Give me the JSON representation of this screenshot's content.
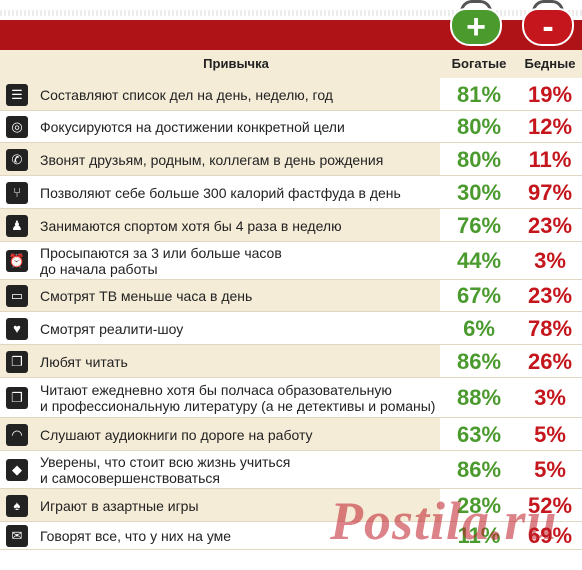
{
  "header": {
    "habit": "Привычка",
    "rich": "Богатые",
    "poor": "Бедные"
  },
  "wallets": {
    "rich_symbol": "+",
    "poor_symbol": "-"
  },
  "colors": {
    "rich": "#4a9a2e",
    "poor": "#c4161c",
    "band": "#b01317",
    "row_alt": "#f5ecd8"
  },
  "rows": [
    {
      "icon": "list-icon",
      "glyph": "☰",
      "label": "Составляют список дел на день, неделю, год",
      "rich": "81%",
      "poor": "19%"
    },
    {
      "icon": "target-icon",
      "glyph": "◎",
      "label": "Фокусируются на достижении конкретной цели",
      "rich": "80%",
      "poor": "12%"
    },
    {
      "icon": "phone-icon",
      "glyph": "✆",
      "label": "Звонят друзьям, родным, коллегам в день рождения",
      "rich": "80%",
      "poor": "11%"
    },
    {
      "icon": "fork-icon",
      "glyph": "⑂",
      "label": "Позволяют себе больше 300 калорий фастфуда в день",
      "rich": "30%",
      "poor": "97%"
    },
    {
      "icon": "runner-icon",
      "glyph": "♟",
      "label": "Занимаются спортом хотя бы 4 раза в неделю",
      "rich": "76%",
      "poor": "23%"
    },
    {
      "icon": "alarm-clock-icon",
      "glyph": "⏰",
      "label": "Просыпаются за 3 или больше часов",
      "label2": "до начала работы",
      "rich": "44%",
      "poor": "3%"
    },
    {
      "icon": "tv-icon",
      "glyph": "▭",
      "label": "Смотрят ТВ меньше часа в день",
      "rich": "67%",
      "poor": "23%"
    },
    {
      "icon": "tv-heart-icon",
      "glyph": "♥",
      "label": "Смотрят реалити-шоу",
      "rich": "6%",
      "poor": "78%"
    },
    {
      "icon": "book-icon",
      "glyph": "❐",
      "label": "Любят читать",
      "rich": "86%",
      "poor": "26%"
    },
    {
      "icon": "book-icon",
      "glyph": "❐",
      "label": "Читают ежедневно хотя бы полчаса образовательную",
      "label2": "и профессиональную литературу (а не детективы и романы)",
      "rich": "88%",
      "poor": "3%"
    },
    {
      "icon": "headphones-icon",
      "glyph": "◠",
      "label": "Слушают аудиокниги по дороге на работу",
      "rich": "63%",
      "poor": "5%"
    },
    {
      "icon": "graduation-cap-icon",
      "glyph": "◆",
      "label": "Уверены, что стоит всю жизнь учиться",
      "label2": "и самосовершенствоваться",
      "rich": "86%",
      "poor": "5%"
    },
    {
      "icon": "spade-icon",
      "glyph": "♠",
      "label": "Играют в азартные игры",
      "rich": "28%",
      "poor": "52%"
    },
    {
      "icon": "speech-icon",
      "glyph": "✉",
      "label": "Говорят все, что у них на уме",
      "rich": "11%",
      "poor": "69%"
    }
  ],
  "watermark": "Postila.ru"
}
